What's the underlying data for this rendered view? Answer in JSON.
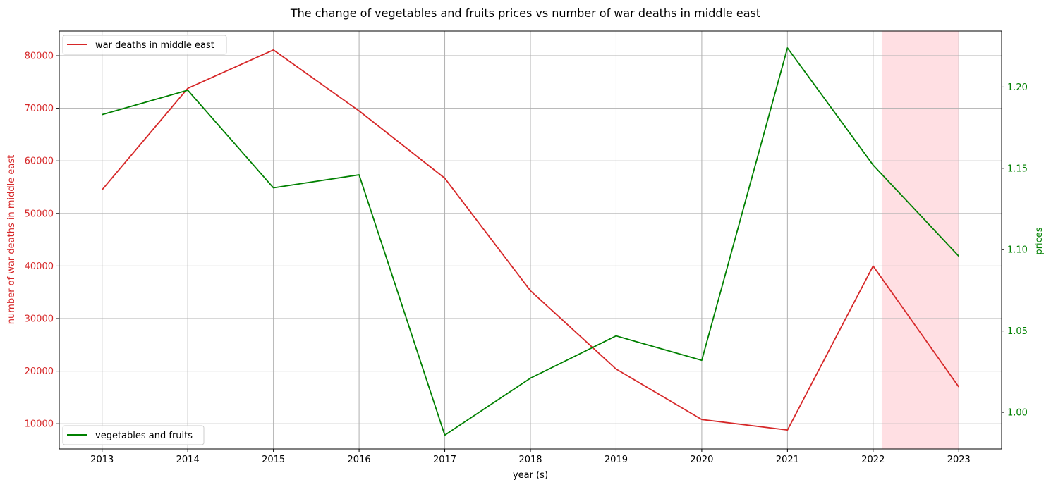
{
  "chart_data": {
    "type": "line",
    "title": "The change of vegetables and fruits prices vs number of war deaths in middle east",
    "xlabel": "year (s)",
    "ylabel_left": "number of war deaths in middle east",
    "ylabel_right": "prices",
    "x": [
      2013,
      2014,
      2015,
      2016,
      2017,
      2018,
      2019,
      2020,
      2021,
      2022,
      2023
    ],
    "x_tick_labels": [
      "2013",
      "2014",
      "2015",
      "2016",
      "2017",
      "2018",
      "2019",
      "2020",
      "2021",
      "2022",
      "2023"
    ],
    "xlim": [
      2012.5,
      2023.5
    ],
    "y_left_ticks": [
      10000,
      20000,
      30000,
      40000,
      50000,
      60000,
      70000,
      80000
    ],
    "y_left_tick_labels": [
      "10000",
      "20000",
      "30000",
      "40000",
      "50000",
      "60000",
      "70000",
      "80000"
    ],
    "ylim_left": [
      5200,
      84700
    ],
    "y_right_ticks": [
      1.0,
      1.05,
      1.1,
      1.15,
      1.2
    ],
    "y_right_tick_labels": [
      "1.00",
      "1.05",
      "1.10",
      "1.15",
      "1.20"
    ],
    "ylim_right": [
      0.9775,
      1.2344
    ],
    "grid": true,
    "shaded_region": {
      "x_start": 2022.1,
      "x_end": 2023.0,
      "color": "#ffdfe3"
    },
    "series": [
      {
        "name": "war deaths in middle east",
        "axis": "left",
        "color": "#d62728",
        "legend_position": "upper-left",
        "values": [
          54500,
          73800,
          81100,
          69500,
          56700,
          35300,
          20400,
          10800,
          8800,
          40000,
          17000
        ]
      },
      {
        "name": "vegetables and fruits",
        "axis": "right",
        "color": "#008000",
        "legend_position": "lower-left",
        "values": [
          1.183,
          1.198,
          1.138,
          1.146,
          0.986,
          1.021,
          1.047,
          1.032,
          1.224,
          1.152,
          1.096
        ]
      }
    ],
    "colors": {
      "left_axis": "#d62728",
      "right_axis": "#008000",
      "grid": "#b0b0b0"
    }
  }
}
